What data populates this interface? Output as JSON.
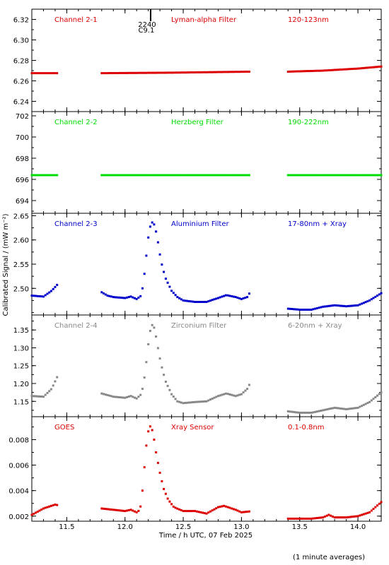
{
  "chart_data": {
    "type": "scatter",
    "xlabel": "Time / h UTC, 07 Feb 2025",
    "ylabel": "Calibrated Signal / (mW m⁻²)",
    "xlim": [
      11.2,
      14.2
    ],
    "xticks": [
      "11.5",
      "12.0",
      "12.5",
      "13.0",
      "13.5",
      "14.0"
    ],
    "xtick_values": [
      11.5,
      12.0,
      12.5,
      13.0,
      13.5,
      14.0
    ],
    "footnote": "(1 minute averages)",
    "marker": {
      "time_label": "2240",
      "class_label": "C9.1",
      "x": 12.22
    },
    "data_gaps": [
      [
        11.42,
        11.8
      ],
      [
        13.08,
        13.4
      ]
    ],
    "panels": [
      {
        "channel": "Channel 2-1",
        "filter": "Lyman-alpha Filter",
        "band": "120-123nm",
        "color": "#dd0000",
        "ylim": [
          6.23,
          6.33
        ],
        "yticks": [
          "6.24",
          "6.26",
          "6.28",
          "6.30",
          "6.32"
        ],
        "ytick_values": [
          6.24,
          6.26,
          6.28,
          6.3,
          6.32
        ],
        "series": [
          [
            11.2,
            6.2675
          ],
          [
            11.42,
            6.2675
          ],
          [
            11.8,
            6.2675
          ],
          [
            12.4,
            6.268
          ],
          [
            13.08,
            6.269
          ],
          [
            13.4,
            6.269
          ],
          [
            13.7,
            6.27
          ],
          [
            14.0,
            6.272
          ],
          [
            14.2,
            6.274
          ]
        ]
      },
      {
        "channel": "Channel 2-2",
        "filter": "Herzberg Filter",
        "band": "190-222nm",
        "color": "#00dd00",
        "ylim": [
          692.8,
          702.4
        ],
        "yticks": [
          "694",
          "696",
          "698",
          "700",
          "702"
        ],
        "ytick_values": [
          694,
          696,
          698,
          700,
          702
        ],
        "series": [
          [
            11.2,
            696.4
          ],
          [
            11.42,
            696.4
          ],
          [
            11.8,
            696.4
          ],
          [
            13.08,
            696.4
          ],
          [
            13.4,
            696.4
          ],
          [
            14.2,
            696.4
          ]
        ]
      },
      {
        "channel": "Channel 2-3",
        "filter": "Aluminium Filter",
        "band": "17-80nm + Xray",
        "color": "#0000cc",
        "ylim": [
          2.445,
          2.655
        ],
        "yticks": [
          "2.50",
          "2.55",
          "2.60",
          "2.65"
        ],
        "ytick_values": [
          2.5,
          2.55,
          2.6,
          2.65
        ],
        "series": [
          [
            11.2,
            2.485
          ],
          [
            11.3,
            2.483
          ],
          [
            11.37,
            2.495
          ],
          [
            11.42,
            2.508
          ],
          [
            11.8,
            2.492
          ],
          [
            11.85,
            2.485
          ],
          [
            11.9,
            2.482
          ],
          [
            12.0,
            2.48
          ],
          [
            12.05,
            2.483
          ],
          [
            12.1,
            2.478
          ],
          [
            12.14,
            2.485
          ],
          [
            12.16,
            2.515
          ],
          [
            12.18,
            2.56
          ],
          [
            12.2,
            2.605
          ],
          [
            12.22,
            2.632
          ],
          [
            12.24,
            2.638
          ],
          [
            12.26,
            2.626
          ],
          [
            12.28,
            2.6
          ],
          [
            12.3,
            2.57
          ],
          [
            12.32,
            2.545
          ],
          [
            12.35,
            2.52
          ],
          [
            12.4,
            2.495
          ],
          [
            12.45,
            2.482
          ],
          [
            12.5,
            2.475
          ],
          [
            12.6,
            2.472
          ],
          [
            12.7,
            2.472
          ],
          [
            12.8,
            2.48
          ],
          [
            12.87,
            2.486
          ],
          [
            12.95,
            2.482
          ],
          [
            13.0,
            2.478
          ],
          [
            13.05,
            2.482
          ],
          [
            13.08,
            2.495
          ],
          [
            13.4,
            2.458
          ],
          [
            13.5,
            2.456
          ],
          [
            13.6,
            2.456
          ],
          [
            13.7,
            2.462
          ],
          [
            13.8,
            2.465
          ],
          [
            13.9,
            2.463
          ],
          [
            14.0,
            2.465
          ],
          [
            14.1,
            2.475
          ],
          [
            14.2,
            2.49
          ]
        ]
      },
      {
        "channel": "Channel 2-4",
        "filter": "Zirconium Filter",
        "band": "6-20nm + Xray",
        "color": "#888888",
        "ylim": [
          1.107,
          1.392
        ],
        "yticks": [
          "1.15",
          "1.20",
          "1.25",
          "1.30",
          "1.35"
        ],
        "ytick_values": [
          1.15,
          1.2,
          1.25,
          1.3,
          1.35
        ],
        "series": [
          [
            11.2,
            1.165
          ],
          [
            11.3,
            1.163
          ],
          [
            11.37,
            1.185
          ],
          [
            11.42,
            1.22
          ],
          [
            11.8,
            1.172
          ],
          [
            11.9,
            1.163
          ],
          [
            12.0,
            1.16
          ],
          [
            12.05,
            1.165
          ],
          [
            12.1,
            1.158
          ],
          [
            12.14,
            1.17
          ],
          [
            12.16,
            1.2
          ],
          [
            12.18,
            1.25
          ],
          [
            12.2,
            1.31
          ],
          [
            12.22,
            1.355
          ],
          [
            12.24,
            1.368
          ],
          [
            12.26,
            1.345
          ],
          [
            12.28,
            1.305
          ],
          [
            12.3,
            1.27
          ],
          [
            12.32,
            1.24
          ],
          [
            12.35,
            1.205
          ],
          [
            12.4,
            1.17
          ],
          [
            12.45,
            1.15
          ],
          [
            12.5,
            1.145
          ],
          [
            12.6,
            1.148
          ],
          [
            12.7,
            1.15
          ],
          [
            12.8,
            1.165
          ],
          [
            12.87,
            1.172
          ],
          [
            12.95,
            1.165
          ],
          [
            13.0,
            1.17
          ],
          [
            13.05,
            1.185
          ],
          [
            13.08,
            1.205
          ],
          [
            13.4,
            1.122
          ],
          [
            13.5,
            1.118
          ],
          [
            13.6,
            1.118
          ],
          [
            13.7,
            1.125
          ],
          [
            13.8,
            1.132
          ],
          [
            13.9,
            1.128
          ],
          [
            14.0,
            1.132
          ],
          [
            14.1,
            1.148
          ],
          [
            14.2,
            1.175
          ]
        ]
      },
      {
        "channel": "GOES",
        "filter": "Xray Sensor",
        "band": "0.1-0.8nm",
        "color": "#dd0000",
        "ylim": [
          0.0016,
          0.0098
        ],
        "yticks": [
          "0.002",
          "0.004",
          "0.006",
          "0.008"
        ],
        "ytick_values": [
          0.002,
          0.004,
          0.006,
          0.008
        ],
        "series": [
          [
            11.2,
            0.0021
          ],
          [
            11.3,
            0.0026
          ],
          [
            11.4,
            0.0029
          ],
          [
            11.5,
            0.0027
          ],
          [
            11.6,
            0.0028
          ],
          [
            11.7,
            0.0028
          ],
          [
            11.8,
            0.0026
          ],
          [
            11.9,
            0.0025
          ],
          [
            12.0,
            0.0024
          ],
          [
            12.05,
            0.0025
          ],
          [
            12.1,
            0.0023
          ],
          [
            12.13,
            0.0025
          ],
          [
            12.15,
            0.004
          ],
          [
            12.17,
            0.0062
          ],
          [
            12.19,
            0.0082
          ],
          [
            12.21,
            0.0091
          ],
          [
            12.23,
            0.0089
          ],
          [
            12.25,
            0.008
          ],
          [
            12.27,
            0.0068
          ],
          [
            12.3,
            0.0054
          ],
          [
            12.33,
            0.0042
          ],
          [
            12.37,
            0.0033
          ],
          [
            12.42,
            0.0027
          ],
          [
            12.5,
            0.0024
          ],
          [
            12.6,
            0.0024
          ],
          [
            12.7,
            0.0022
          ],
          [
            12.8,
            0.0027
          ],
          [
            12.85,
            0.0028
          ],
          [
            12.95,
            0.0025
          ],
          [
            13.0,
            0.0023
          ],
          [
            13.1,
            0.0024
          ],
          [
            13.2,
            0.002
          ],
          [
            13.3,
            0.0019
          ],
          [
            13.4,
            0.0018
          ],
          [
            13.5,
            0.0018
          ],
          [
            13.6,
            0.0018
          ],
          [
            13.7,
            0.0019
          ],
          [
            13.75,
            0.0021
          ],
          [
            13.8,
            0.0019
          ],
          [
            13.9,
            0.0019
          ],
          [
            14.0,
            0.002
          ],
          [
            14.1,
            0.0023
          ],
          [
            14.2,
            0.0031
          ]
        ]
      }
    ]
  }
}
